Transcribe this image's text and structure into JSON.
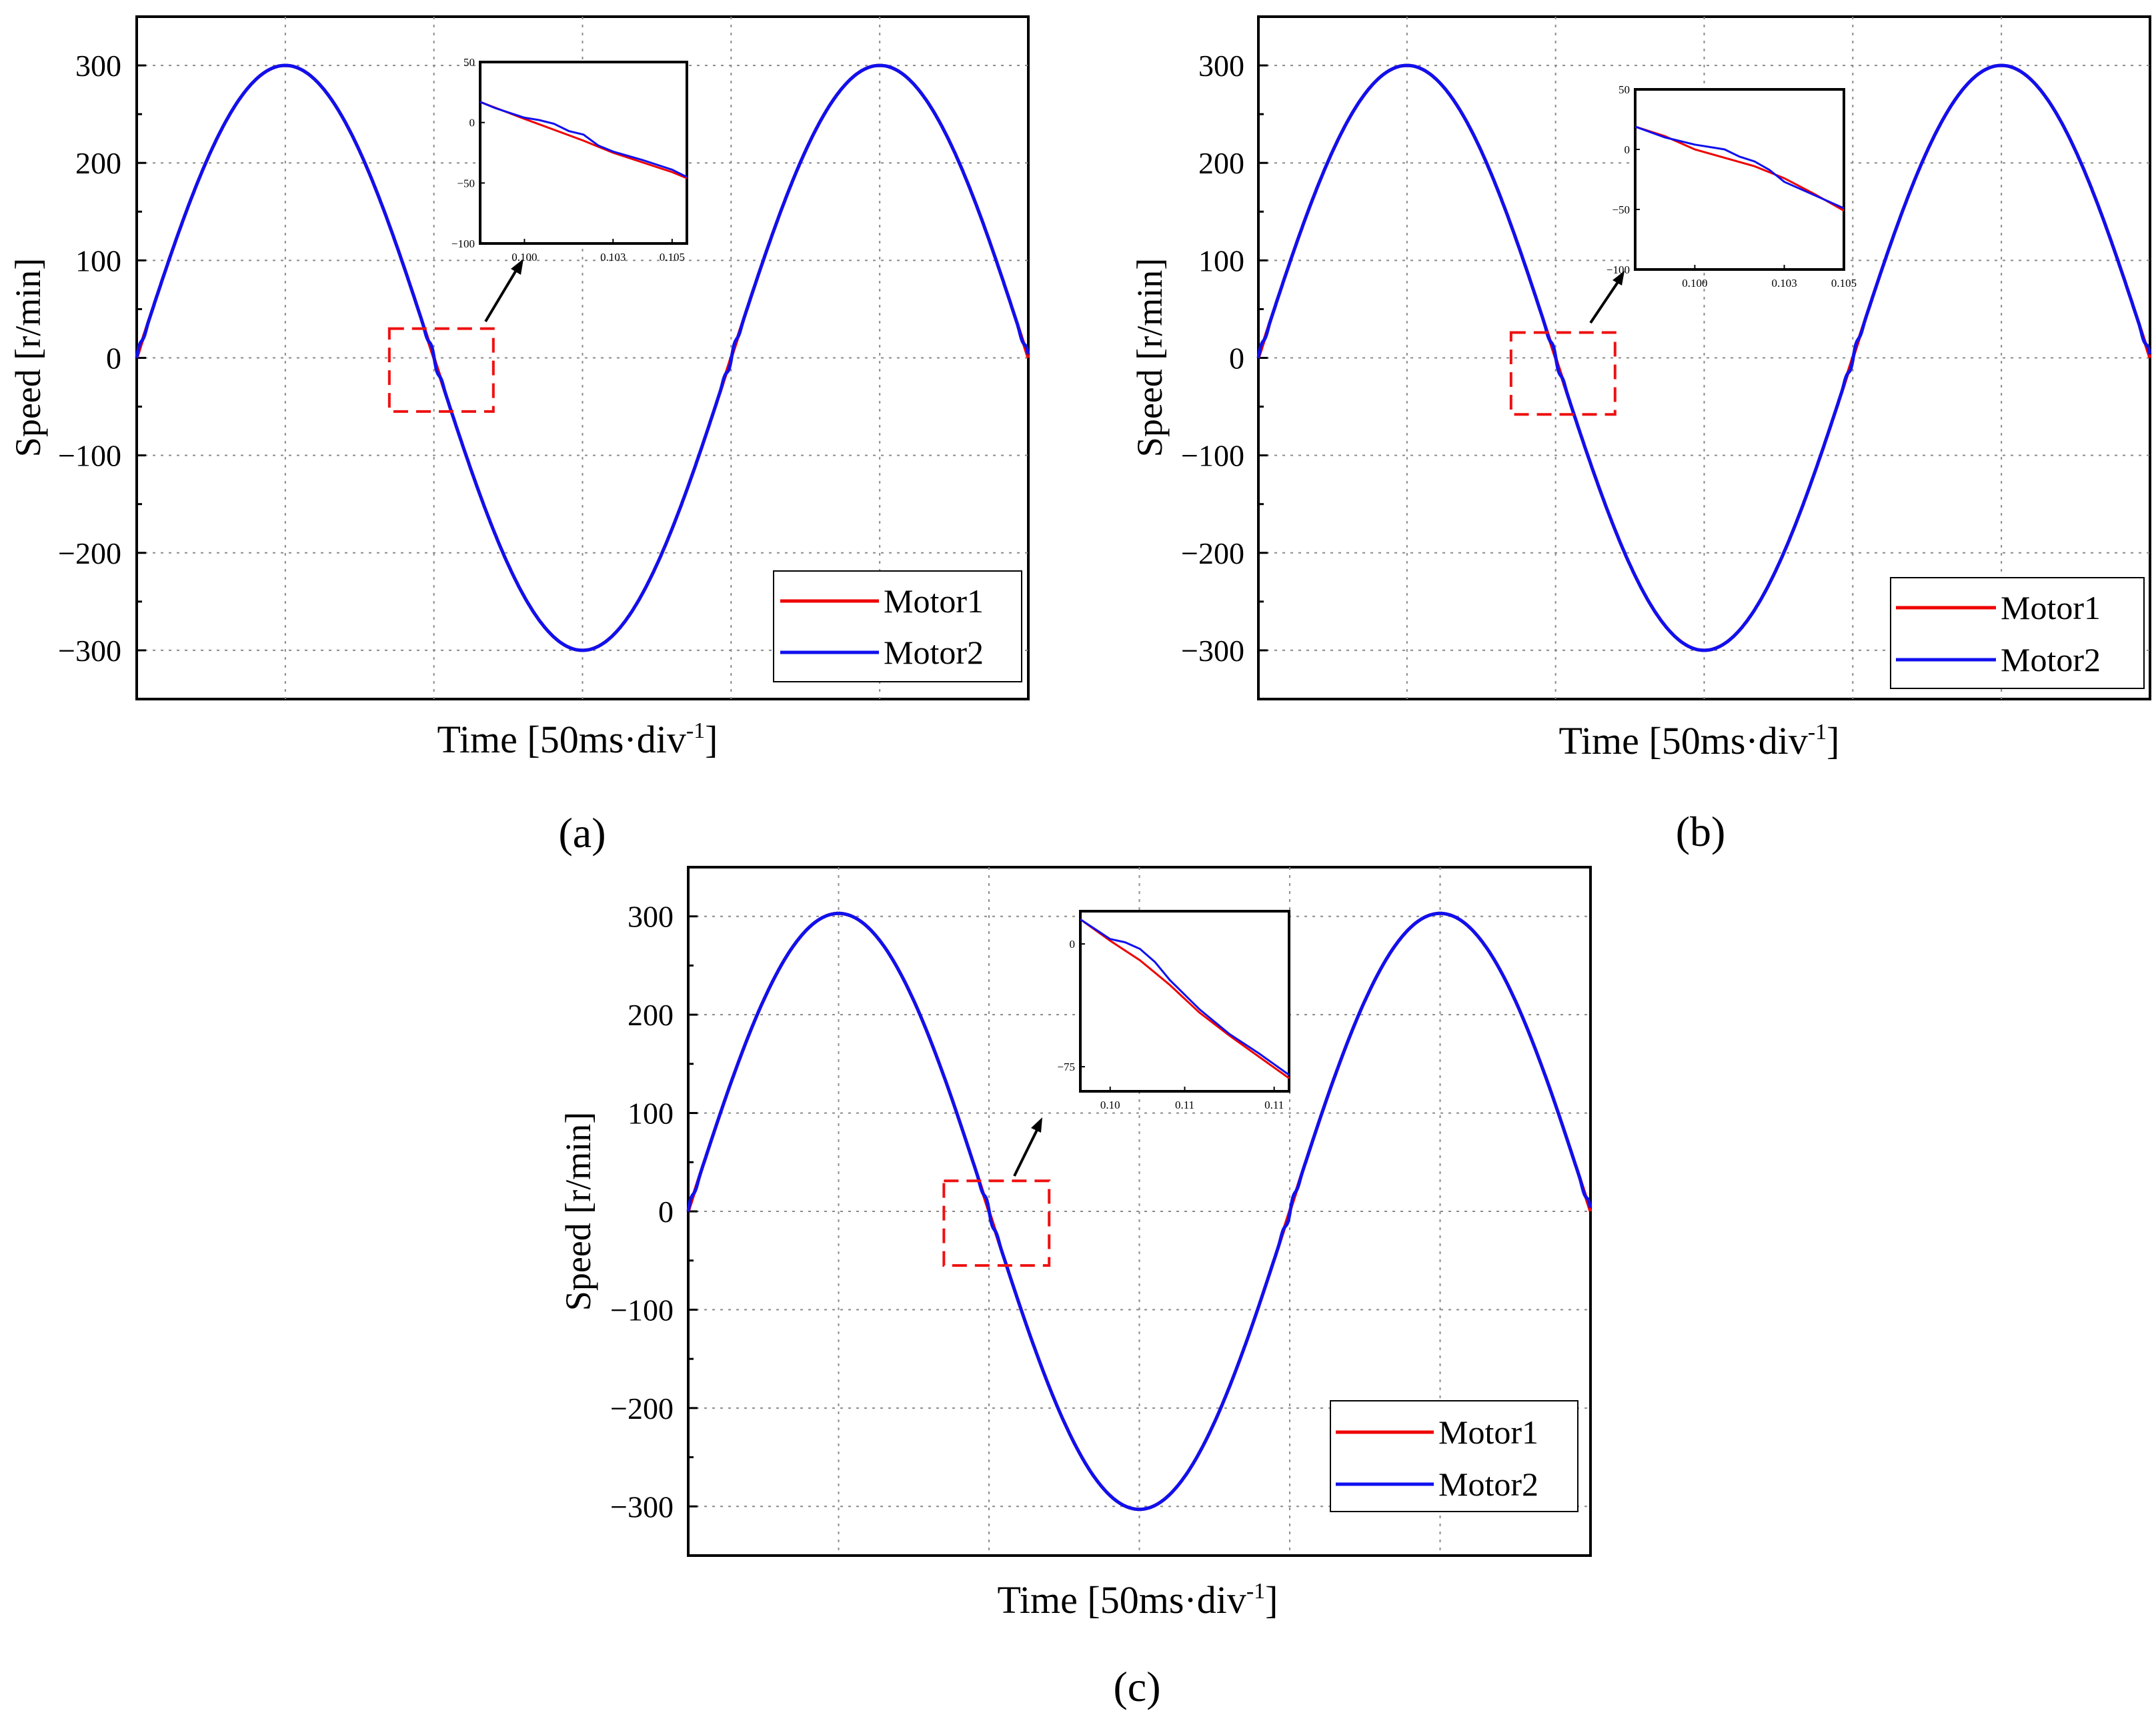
{
  "colors": {
    "motor1": "#ee0000",
    "motor2": "#1010ee",
    "zoom_box": "#ee1111",
    "grid": "#8a8a8a"
  },
  "chart_data": [
    {
      "type": "line",
      "panel_label": "(a)",
      "ylabel": "Speed [r/min]",
      "xlabel": {
        "main": "Time ",
        "unit": "50ms·div",
        "sup": "-1"
      },
      "ylim": [
        -350,
        350
      ],
      "yticks": [
        300,
        200,
        100,
        0,
        -100,
        -200,
        -300
      ],
      "ytick_labels": [
        "300",
        "200",
        "100",
        "0",
        "−100",
        "−200",
        "−300"
      ],
      "xlim_divisions": [
        0,
        6
      ],
      "amplitude": 300,
      "period_divisions": 4,
      "grid": true,
      "legend": {
        "placement": "bottom-right",
        "entries": [
          "Motor1",
          "Motor2"
        ]
      },
      "series": [
        {
          "name": "Motor1",
          "description": "sinusoid 300 sin(2πt/4div)",
          "amplitude": 300
        },
        {
          "name": "Motor2",
          "description": "sinusoid 300 sin(2πt/4div), small ripple near zero crossings",
          "amplitude": 300
        }
      ],
      "zoom_region": {
        "x": [
          1.7,
          2.4
        ],
        "y": [
          -55,
          30
        ]
      },
      "inset": {
        "xlim": [
          0.0985,
          0.1055
        ],
        "ylim": [
          -100,
          50
        ],
        "xticks": [
          0.1,
          0.103,
          0.105
        ],
        "xtick_labels": [
          "0.100",
          "0.103",
          "0.105"
        ],
        "yticks": [
          50,
          0,
          -50,
          -100
        ],
        "ytick_labels": [
          "50",
          "0",
          "−50",
          "−100"
        ],
        "motor1": {
          "x": [
            0.0985,
            0.1,
            0.101,
            0.102,
            0.103,
            0.104,
            0.105,
            0.1055
          ],
          "y": [
            17,
            3,
            -6,
            -15,
            -25,
            -33,
            -41,
            -46
          ]
        },
        "motor2": {
          "x": [
            0.0985,
            0.099,
            0.1,
            0.1005,
            0.101,
            0.1015,
            0.102,
            0.1025,
            0.103,
            0.104,
            0.105,
            0.1055
          ],
          "y": [
            17,
            12,
            4,
            2,
            -1,
            -7,
            -10,
            -19,
            -24,
            -31,
            -39,
            -45
          ]
        }
      }
    },
    {
      "type": "line",
      "panel_label": "(b)",
      "ylabel": "Speed [r/min]",
      "xlabel": {
        "main": "Time ",
        "unit": "50ms·div",
        "sup": "-1"
      },
      "ylim": [
        -350,
        350
      ],
      "yticks": [
        300,
        200,
        100,
        0,
        -100,
        -200,
        -300
      ],
      "ytick_labels": [
        "300",
        "200",
        "100",
        "0",
        "−100",
        "−200",
        "−300"
      ],
      "xlim_divisions": [
        0,
        6
      ],
      "amplitude": 300,
      "period_divisions": 4,
      "grid": true,
      "legend": {
        "placement": "bottom-right",
        "entries": [
          "Motor1",
          "Motor2"
        ]
      },
      "series": [
        {
          "name": "Motor1",
          "description": "sinusoid 300 sin(2πt/4div)",
          "amplitude": 300
        },
        {
          "name": "Motor2",
          "description": "sinusoid 300 sin(2πt/4div), small ripple near zero crossings",
          "amplitude": 300
        }
      ],
      "zoom_region": {
        "x": [
          1.7,
          2.4
        ],
        "y": [
          -58,
          26
        ]
      },
      "inset": {
        "xlim": [
          0.098,
          0.105
        ],
        "ylim": [
          -100,
          50
        ],
        "xticks": [
          0.1,
          0.103,
          0.105
        ],
        "xtick_labels": [
          "0.100",
          "0.103",
          "0.105"
        ],
        "yticks": [
          50,
          0,
          -50,
          -100
        ],
        "ytick_labels": [
          "50",
          "0",
          "−50",
          "−100"
        ],
        "motor1": {
          "x": [
            0.098,
            0.099,
            0.1,
            0.101,
            0.102,
            0.103,
            0.104,
            0.105
          ],
          "y": [
            19,
            11,
            0,
            -7,
            -14,
            -24,
            -37,
            -51
          ]
        },
        "motor2": {
          "x": [
            0.098,
            0.099,
            0.1,
            0.1005,
            0.101,
            0.1015,
            0.102,
            0.1025,
            0.103,
            0.104,
            0.105
          ],
          "y": [
            19,
            10,
            4,
            2,
            0,
            -6,
            -10,
            -17,
            -27,
            -38,
            -49
          ]
        }
      }
    },
    {
      "type": "line",
      "panel_label": "(c)",
      "ylabel": "Speed [r/min]",
      "xlabel": {
        "main": "Time ",
        "unit": "50ms·div",
        "sup": "-1"
      },
      "ylim": [
        -350,
        350
      ],
      "yticks": [
        300,
        200,
        100,
        0,
        -100,
        -200,
        -300
      ],
      "ytick_labels": [
        "300",
        "200",
        "100",
        "0",
        "−100",
        "−200",
        "−300"
      ],
      "xlim_divisions": [
        0,
        6
      ],
      "amplitude": 303,
      "period_divisions": 4,
      "grid": true,
      "legend": {
        "placement": "bottom-right",
        "entries": [
          "Motor1",
          "Motor2"
        ]
      },
      "series": [
        {
          "name": "Motor1",
          "description": "sinusoid 303 sin(2πt/4div)",
          "amplitude": 303
        },
        {
          "name": "Motor2",
          "description": "sinusoid 303 sin(2πt/4div), small ripple near zero crossings",
          "amplitude": 303
        }
      ],
      "zoom_region": {
        "x": [
          1.7,
          2.4
        ],
        "y": [
          -55,
          31
        ]
      },
      "inset": {
        "xlim": [
          0.098,
          0.112
        ],
        "ylim": [
          -90,
          20
        ],
        "xticks": [
          0.1,
          0.105,
          0.111
        ],
        "xtick_labels": [
          "0.10",
          "0.11",
          "0.11"
        ],
        "yticks": [
          0,
          -75
        ],
        "ytick_labels": [
          "0",
          "−75"
        ],
        "motor1": {
          "x": [
            0.098,
            0.1,
            0.102,
            0.104,
            0.106,
            0.108,
            0.11,
            0.112
          ],
          "y": [
            15,
            2,
            -10,
            -25,
            -42,
            -56,
            -69,
            -82
          ]
        },
        "motor2": {
          "x": [
            0.098,
            0.1,
            0.101,
            0.102,
            0.103,
            0.104,
            0.106,
            0.108,
            0.11,
            0.112
          ],
          "y": [
            15,
            3,
            1,
            -3,
            -11,
            -22,
            -40,
            -55,
            -67,
            -80
          ]
        }
      }
    }
  ]
}
